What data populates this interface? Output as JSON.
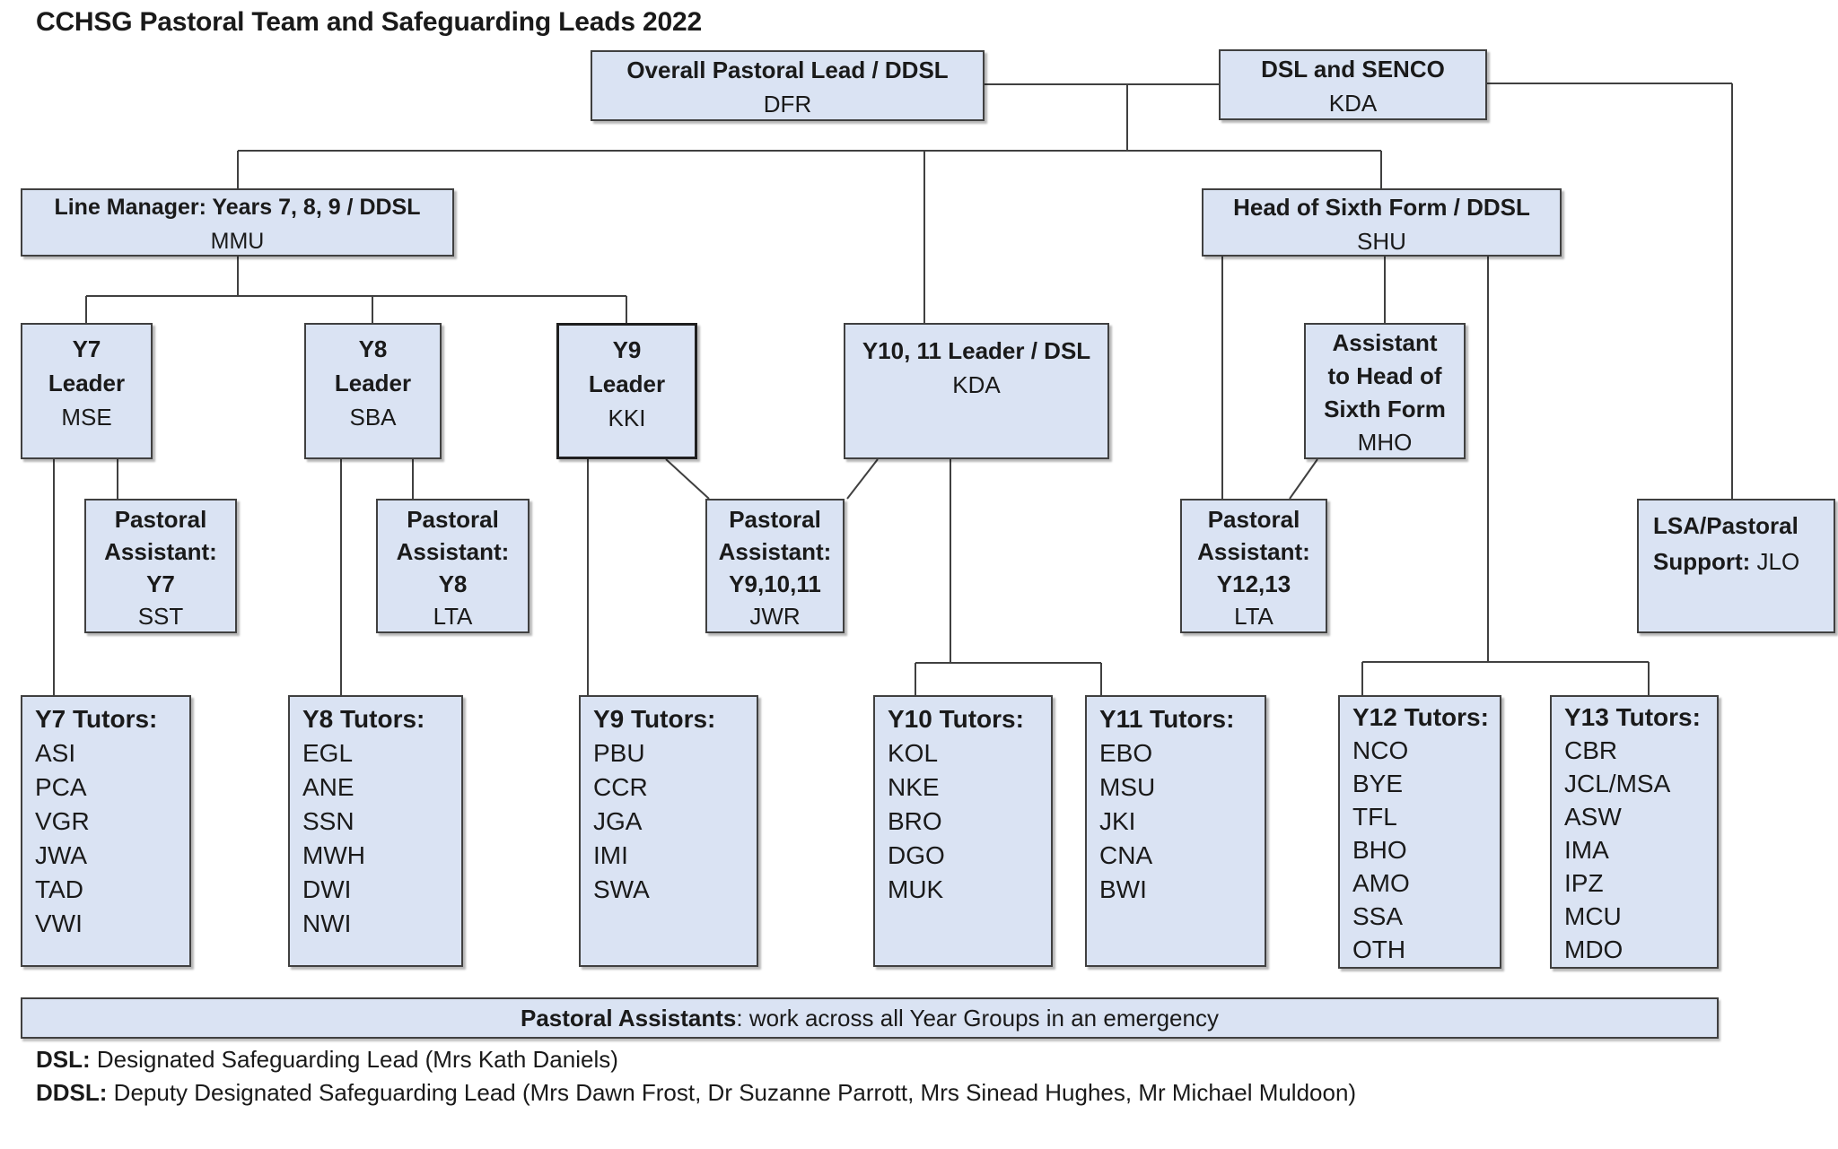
{
  "title": "CCHSG Pastoral Team and Safeguarding Leads 2022",
  "nodes": [
    {
      "id": "overall-pastoral-lead",
      "lines": [
        [
          {
            "t": "Overall Pastoral Lead / DDSL",
            "b": true
          }
        ],
        [
          {
            "t": "DFR",
            "b": false
          }
        ]
      ]
    },
    {
      "id": "dsl-and-senco",
      "lines": [
        [
          {
            "t": "DSL and SENCO",
            "b": true
          }
        ],
        [
          {
            "t": "KDA",
            "b": false
          }
        ]
      ]
    },
    {
      "id": "line-manager-y789",
      "lines": [
        [
          {
            "t": "Line Manager: Years 7, 8, 9 / DDSL",
            "b": true
          }
        ],
        [
          {
            "t": "MMU",
            "b": false
          }
        ]
      ]
    },
    {
      "id": "head-of-sixth-form",
      "lines": [
        [
          {
            "t": "Head of Sixth Form / DDSL",
            "b": true
          }
        ],
        [
          {
            "t": "SHU",
            "b": false
          }
        ]
      ]
    },
    {
      "id": "y7-leader",
      "lines": [
        [
          {
            "t": "Y7",
            "b": true
          }
        ],
        [
          {
            "t": "Leader",
            "b": true
          }
        ],
        [
          {
            "t": "MSE",
            "b": false
          }
        ]
      ]
    },
    {
      "id": "y8-leader",
      "lines": [
        [
          {
            "t": "Y8",
            "b": true
          }
        ],
        [
          {
            "t": "Leader",
            "b": true
          }
        ],
        [
          {
            "t": "SBA",
            "b": false
          }
        ]
      ]
    },
    {
      "id": "y9-leader",
      "lines": [
        [
          {
            "t": "Y9",
            "b": true
          }
        ],
        [
          {
            "t": "Leader",
            "b": true
          }
        ],
        [
          {
            "t": "KKI",
            "b": false
          }
        ]
      ]
    },
    {
      "id": "y10-11-leader",
      "lines": [
        [
          {
            "t": "Y10, 11 Leader / DSL",
            "b": true
          }
        ],
        [
          {
            "t": "KDA",
            "b": false
          }
        ]
      ]
    },
    {
      "id": "assistant-head-sixth-form",
      "lines": [
        [
          {
            "t": "Assistant",
            "b": true
          }
        ],
        [
          {
            "t": "to Head of",
            "b": true
          }
        ],
        [
          {
            "t": "Sixth Form",
            "b": true
          }
        ],
        [
          {
            "t": "MHO",
            "b": false
          }
        ]
      ]
    },
    {
      "id": "pastoral-assistant-y7",
      "lines": [
        [
          {
            "t": "Pastoral",
            "b": true
          }
        ],
        [
          {
            "t": "Assistant:",
            "b": true
          }
        ],
        [
          {
            "t": "Y7",
            "b": true
          }
        ],
        [
          {
            "t": "SST",
            "b": false
          }
        ]
      ]
    },
    {
      "id": "pastoral-assistant-y8",
      "lines": [
        [
          {
            "t": "Pastoral",
            "b": true
          }
        ],
        [
          {
            "t": "Assistant:",
            "b": true
          }
        ],
        [
          {
            "t": "Y8",
            "b": true
          }
        ],
        [
          {
            "t": "LTA",
            "b": false
          }
        ]
      ]
    },
    {
      "id": "pastoral-assistant-y9-10-11",
      "lines": [
        [
          {
            "t": "Pastoral",
            "b": true
          }
        ],
        [
          {
            "t": "Assistant:",
            "b": true
          }
        ],
        [
          {
            "t": "Y9,10,11",
            "b": true
          }
        ],
        [
          {
            "t": "JWR",
            "b": false
          }
        ]
      ]
    },
    {
      "id": "pastoral-assistant-y12-13",
      "lines": [
        [
          {
            "t": "Pastoral",
            "b": true
          }
        ],
        [
          {
            "t": "Assistant:",
            "b": true
          }
        ],
        [
          {
            "t": "Y12,13",
            "b": true
          }
        ],
        [
          {
            "t": "LTA",
            "b": false
          }
        ]
      ]
    },
    {
      "id": "lsa-pastoral-support",
      "lines": [
        [
          {
            "t": "LSA/Pastoral",
            "b": true
          }
        ],
        [
          {
            "t": "Support:",
            "b": true
          },
          {
            "t": " JLO",
            "b": false
          }
        ]
      ]
    },
    {
      "id": "y7-tutors",
      "lines": [
        [
          {
            "t": "Y7 Tutors:",
            "b": true
          }
        ],
        [
          {
            "t": "ASI",
            "b": false
          }
        ],
        [
          {
            "t": "PCA",
            "b": false
          }
        ],
        [
          {
            "t": "VGR",
            "b": false
          }
        ],
        [
          {
            "t": "JWA",
            "b": false
          }
        ],
        [
          {
            "t": "TAD",
            "b": false
          }
        ],
        [
          {
            "t": "VWI",
            "b": false
          }
        ]
      ]
    },
    {
      "id": "y8-tutors",
      "lines": [
        [
          {
            "t": "Y8 Tutors:",
            "b": true
          }
        ],
        [
          {
            "t": "EGL",
            "b": false
          }
        ],
        [
          {
            "t": "ANE",
            "b": false
          }
        ],
        [
          {
            "t": "SSN",
            "b": false
          }
        ],
        [
          {
            "t": "MWH",
            "b": false
          }
        ],
        [
          {
            "t": "DWI",
            "b": false
          }
        ],
        [
          {
            "t": "NWI",
            "b": false
          }
        ]
      ]
    },
    {
      "id": "y9-tutors",
      "lines": [
        [
          {
            "t": "Y9 Tutors:",
            "b": true
          }
        ],
        [
          {
            "t": "PBU",
            "b": false
          }
        ],
        [
          {
            "t": "CCR",
            "b": false
          }
        ],
        [
          {
            "t": "JGA",
            "b": false
          }
        ],
        [
          {
            "t": "IMI",
            "b": false
          }
        ],
        [
          {
            "t": "SWA",
            "b": false
          }
        ]
      ]
    },
    {
      "id": "y10-tutors",
      "lines": [
        [
          {
            "t": "Y10 Tutors:",
            "b": true
          }
        ],
        [
          {
            "t": "KOL",
            "b": false
          }
        ],
        [
          {
            "t": "NKE",
            "b": false
          }
        ],
        [
          {
            "t": "BRO",
            "b": false
          }
        ],
        [
          {
            "t": "DGO",
            "b": false
          }
        ],
        [
          {
            "t": "MUK",
            "b": false
          }
        ]
      ]
    },
    {
      "id": "y11-tutors",
      "lines": [
        [
          {
            "t": "Y11 Tutors:",
            "b": true
          }
        ],
        [
          {
            "t": "EBO",
            "b": false
          }
        ],
        [
          {
            "t": "MSU",
            "b": false
          }
        ],
        [
          {
            "t": "JKI",
            "b": false
          }
        ],
        [
          {
            "t": "CNA",
            "b": false
          }
        ],
        [
          {
            "t": "BWI",
            "b": false
          }
        ]
      ]
    },
    {
      "id": "y12-tutors",
      "lines": [
        [
          {
            "t": "Y12 Tutors:",
            "b": true
          }
        ],
        [
          {
            "t": "NCO",
            "b": false
          }
        ],
        [
          {
            "t": "BYE",
            "b": false
          }
        ],
        [
          {
            "t": "TFL",
            "b": false
          }
        ],
        [
          {
            "t": "BHO",
            "b": false
          }
        ],
        [
          {
            "t": "AMO",
            "b": false
          }
        ],
        [
          {
            "t": "SSA",
            "b": false
          }
        ],
        [
          {
            "t": "OTH",
            "b": false
          }
        ]
      ]
    },
    {
      "id": "y13-tutors",
      "lines": [
        [
          {
            "t": "Y13 Tutors:",
            "b": true
          }
        ],
        [
          {
            "t": "CBR",
            "b": false
          }
        ],
        [
          {
            "t": "JCL/MSA",
            "b": false
          }
        ],
        [
          {
            "t": "ASW",
            "b": false
          }
        ],
        [
          {
            "t": "IMA",
            "b": false
          }
        ],
        [
          {
            "t": "IPZ",
            "b": false
          }
        ],
        [
          {
            "t": "MCU",
            "b": false
          }
        ],
        [
          {
            "t": "MDO",
            "b": false
          }
        ]
      ]
    }
  ],
  "banner": {
    "bold": "Pastoral Assistants",
    "rest": ": work across all Year Groups in an emergency"
  },
  "footnotes": [
    {
      "bold": "DSL:",
      "rest": " Designated Safeguarding Lead (Mrs Kath Daniels)"
    },
    {
      "bold": "DDSL:",
      "rest": " Deputy Designated Safeguarding Lead (Mrs Dawn Frost, Dr Suzanne Parrott, Mrs Sinead Hughes, Mr Michael Muldoon)"
    }
  ],
  "colors": {
    "box_fill": "#dae3f3",
    "box_border": "#404040",
    "connector": "#404040",
    "text": "#1a1a1a"
  }
}
